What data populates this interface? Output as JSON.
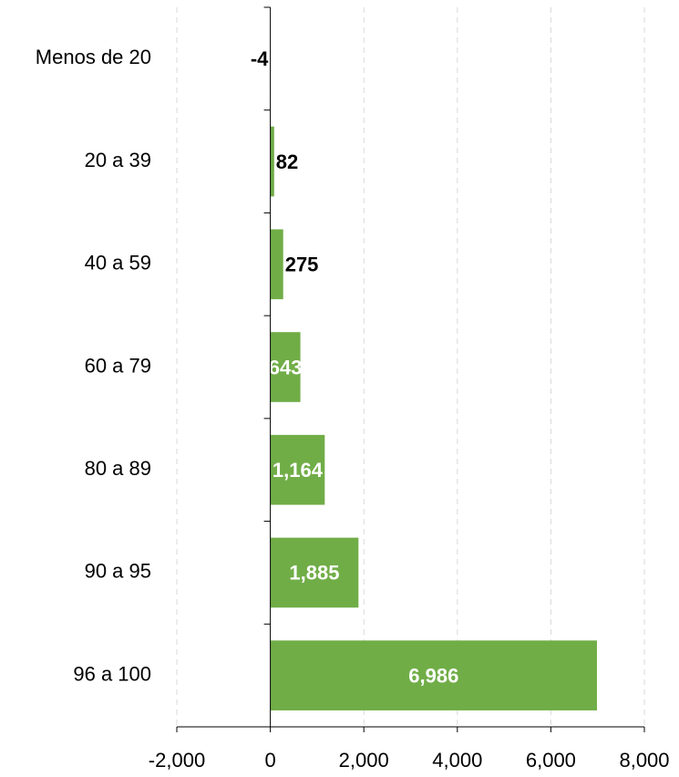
{
  "chart_data": {
    "type": "barh",
    "categories": [
      "Menos de 20",
      "20 a 39",
      "40 a 59",
      "60 a 79",
      "80 a 89",
      "90 a 95",
      "96 a 100"
    ],
    "values": [
      -4,
      82,
      275,
      643,
      1164,
      1885,
      6986
    ],
    "value_labels": [
      "-4",
      "82",
      "275",
      "643",
      "1,164",
      "1,885",
      "6,986"
    ],
    "color": "#70ad47",
    "xlim": [
      -2000,
      8000
    ],
    "xticks": [
      {
        "value": -2000,
        "label": "-2,000"
      },
      0,
      {
        "value": 2000,
        "label": "2,000"
      },
      {
        "value": 4000,
        "label": "4,000"
      },
      {
        "value": 6000,
        "label": "6,000"
      },
      {
        "value": 8000,
        "label": "8,000"
      }
    ],
    "grid": true
  }
}
